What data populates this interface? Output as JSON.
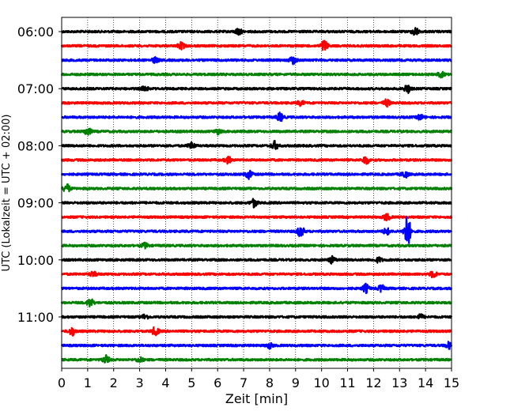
{
  "chart_data": {
    "type": "line",
    "title": "",
    "xlabel": "Zeit  [min]",
    "ylabel": "UTC (Lokalzeit = UTC + 02:00)",
    "xlim": [
      0,
      15
    ],
    "x_ticks": [
      "0",
      "1",
      "2",
      "3",
      "4",
      "5",
      "6",
      "7",
      "8",
      "9",
      "10",
      "11",
      "12",
      "13",
      "14",
      "15"
    ],
    "y_tick_labels": [
      "06:00",
      "07:00",
      "08:00",
      "09:00",
      "10:00",
      "11:00"
    ],
    "grid": "vertical dotted at every minute",
    "trace_interval_min": 15,
    "trace_colors": [
      "#000000",
      "#ff0000",
      "#0000ff",
      "#008000"
    ],
    "series": [
      {
        "start": "06:00",
        "color": "#000000",
        "events": [
          {
            "t": 6.8,
            "a": 4
          },
          {
            "t": 13.6,
            "a": 5
          }
        ]
      },
      {
        "start": "06:15",
        "color": "#ff0000",
        "events": [
          {
            "t": 10.1,
            "a": 7
          },
          {
            "t": 4.6,
            "a": 4
          }
        ]
      },
      {
        "start": "06:30",
        "color": "#0000ff",
        "events": [
          {
            "t": 8.9,
            "a": 5
          },
          {
            "t": 3.6,
            "a": 3
          }
        ]
      },
      {
        "start": "06:45",
        "color": "#008000",
        "events": [
          {
            "t": 14.6,
            "a": 3
          }
        ]
      },
      {
        "start": "07:00",
        "color": "#000000",
        "events": [
          {
            "t": 13.3,
            "a": 5
          },
          {
            "t": 3.2,
            "a": 3
          }
        ]
      },
      {
        "start": "07:15",
        "color": "#ff0000",
        "events": [
          {
            "t": 12.5,
            "a": 4
          },
          {
            "t": 9.2,
            "a": 3
          }
        ]
      },
      {
        "start": "07:30",
        "color": "#0000ff",
        "events": [
          {
            "t": 8.4,
            "a": 5
          },
          {
            "t": 13.8,
            "a": 3
          }
        ]
      },
      {
        "start": "07:45",
        "color": "#008000",
        "events": [
          {
            "t": 1.0,
            "a": 5
          },
          {
            "t": 6.0,
            "a": 3
          }
        ]
      },
      {
        "start": "08:00",
        "color": "#000000",
        "events": [
          {
            "t": 8.2,
            "a": 5
          },
          {
            "t": 5.0,
            "a": 4
          }
        ]
      },
      {
        "start": "08:15",
        "color": "#ff0000",
        "events": [
          {
            "t": 11.7,
            "a": 5
          },
          {
            "t": 6.4,
            "a": 4
          }
        ]
      },
      {
        "start": "08:30",
        "color": "#0000ff",
        "events": [
          {
            "t": 7.2,
            "a": 5
          },
          {
            "t": 13.2,
            "a": 4
          }
        ]
      },
      {
        "start": "08:45",
        "color": "#008000",
        "events": [
          {
            "t": 0.2,
            "a": 5
          }
        ]
      },
      {
        "start": "09:00",
        "color": "#000000",
        "events": [
          {
            "t": 7.4,
            "a": 5
          }
        ]
      },
      {
        "start": "09:15",
        "color": "#ff0000",
        "events": [
          {
            "t": 12.5,
            "a": 4
          }
        ]
      },
      {
        "start": "09:30",
        "color": "#0000ff",
        "events": [
          {
            "t": 13.3,
            "a": 20
          },
          {
            "t": 9.2,
            "a": 7
          },
          {
            "t": 12.5,
            "a": 4
          }
        ]
      },
      {
        "start": "09:45",
        "color": "#008000",
        "events": [
          {
            "t": 3.2,
            "a": 3
          }
        ]
      },
      {
        "start": "10:00",
        "color": "#000000",
        "events": [
          {
            "t": 10.4,
            "a": 4
          },
          {
            "t": 12.2,
            "a": 3
          }
        ]
      },
      {
        "start": "10:15",
        "color": "#ff0000",
        "events": [
          {
            "t": 14.3,
            "a": 4
          },
          {
            "t": 1.2,
            "a": 3
          }
        ]
      },
      {
        "start": "10:30",
        "color": "#0000ff",
        "events": [
          {
            "t": 11.7,
            "a": 5
          },
          {
            "t": 12.3,
            "a": 4
          }
        ]
      },
      {
        "start": "10:45",
        "color": "#008000",
        "events": [
          {
            "t": 1.1,
            "a": 5
          }
        ]
      },
      {
        "start": "11:00",
        "color": "#000000",
        "events": [
          {
            "t": 13.8,
            "a": 3
          },
          {
            "t": 3.2,
            "a": 3
          }
        ]
      },
      {
        "start": "11:15",
        "color": "#ff0000",
        "events": [
          {
            "t": 0.4,
            "a": 5
          },
          {
            "t": 3.6,
            "a": 5
          }
        ]
      },
      {
        "start": "11:30",
        "color": "#0000ff",
        "events": [
          {
            "t": 14.9,
            "a": 4
          },
          {
            "t": 8.0,
            "a": 3
          }
        ]
      },
      {
        "start": "11:45",
        "color": "#008000",
        "events": [
          {
            "t": 1.7,
            "a": 5
          },
          {
            "t": 3.0,
            "a": 3
          }
        ]
      }
    ]
  }
}
